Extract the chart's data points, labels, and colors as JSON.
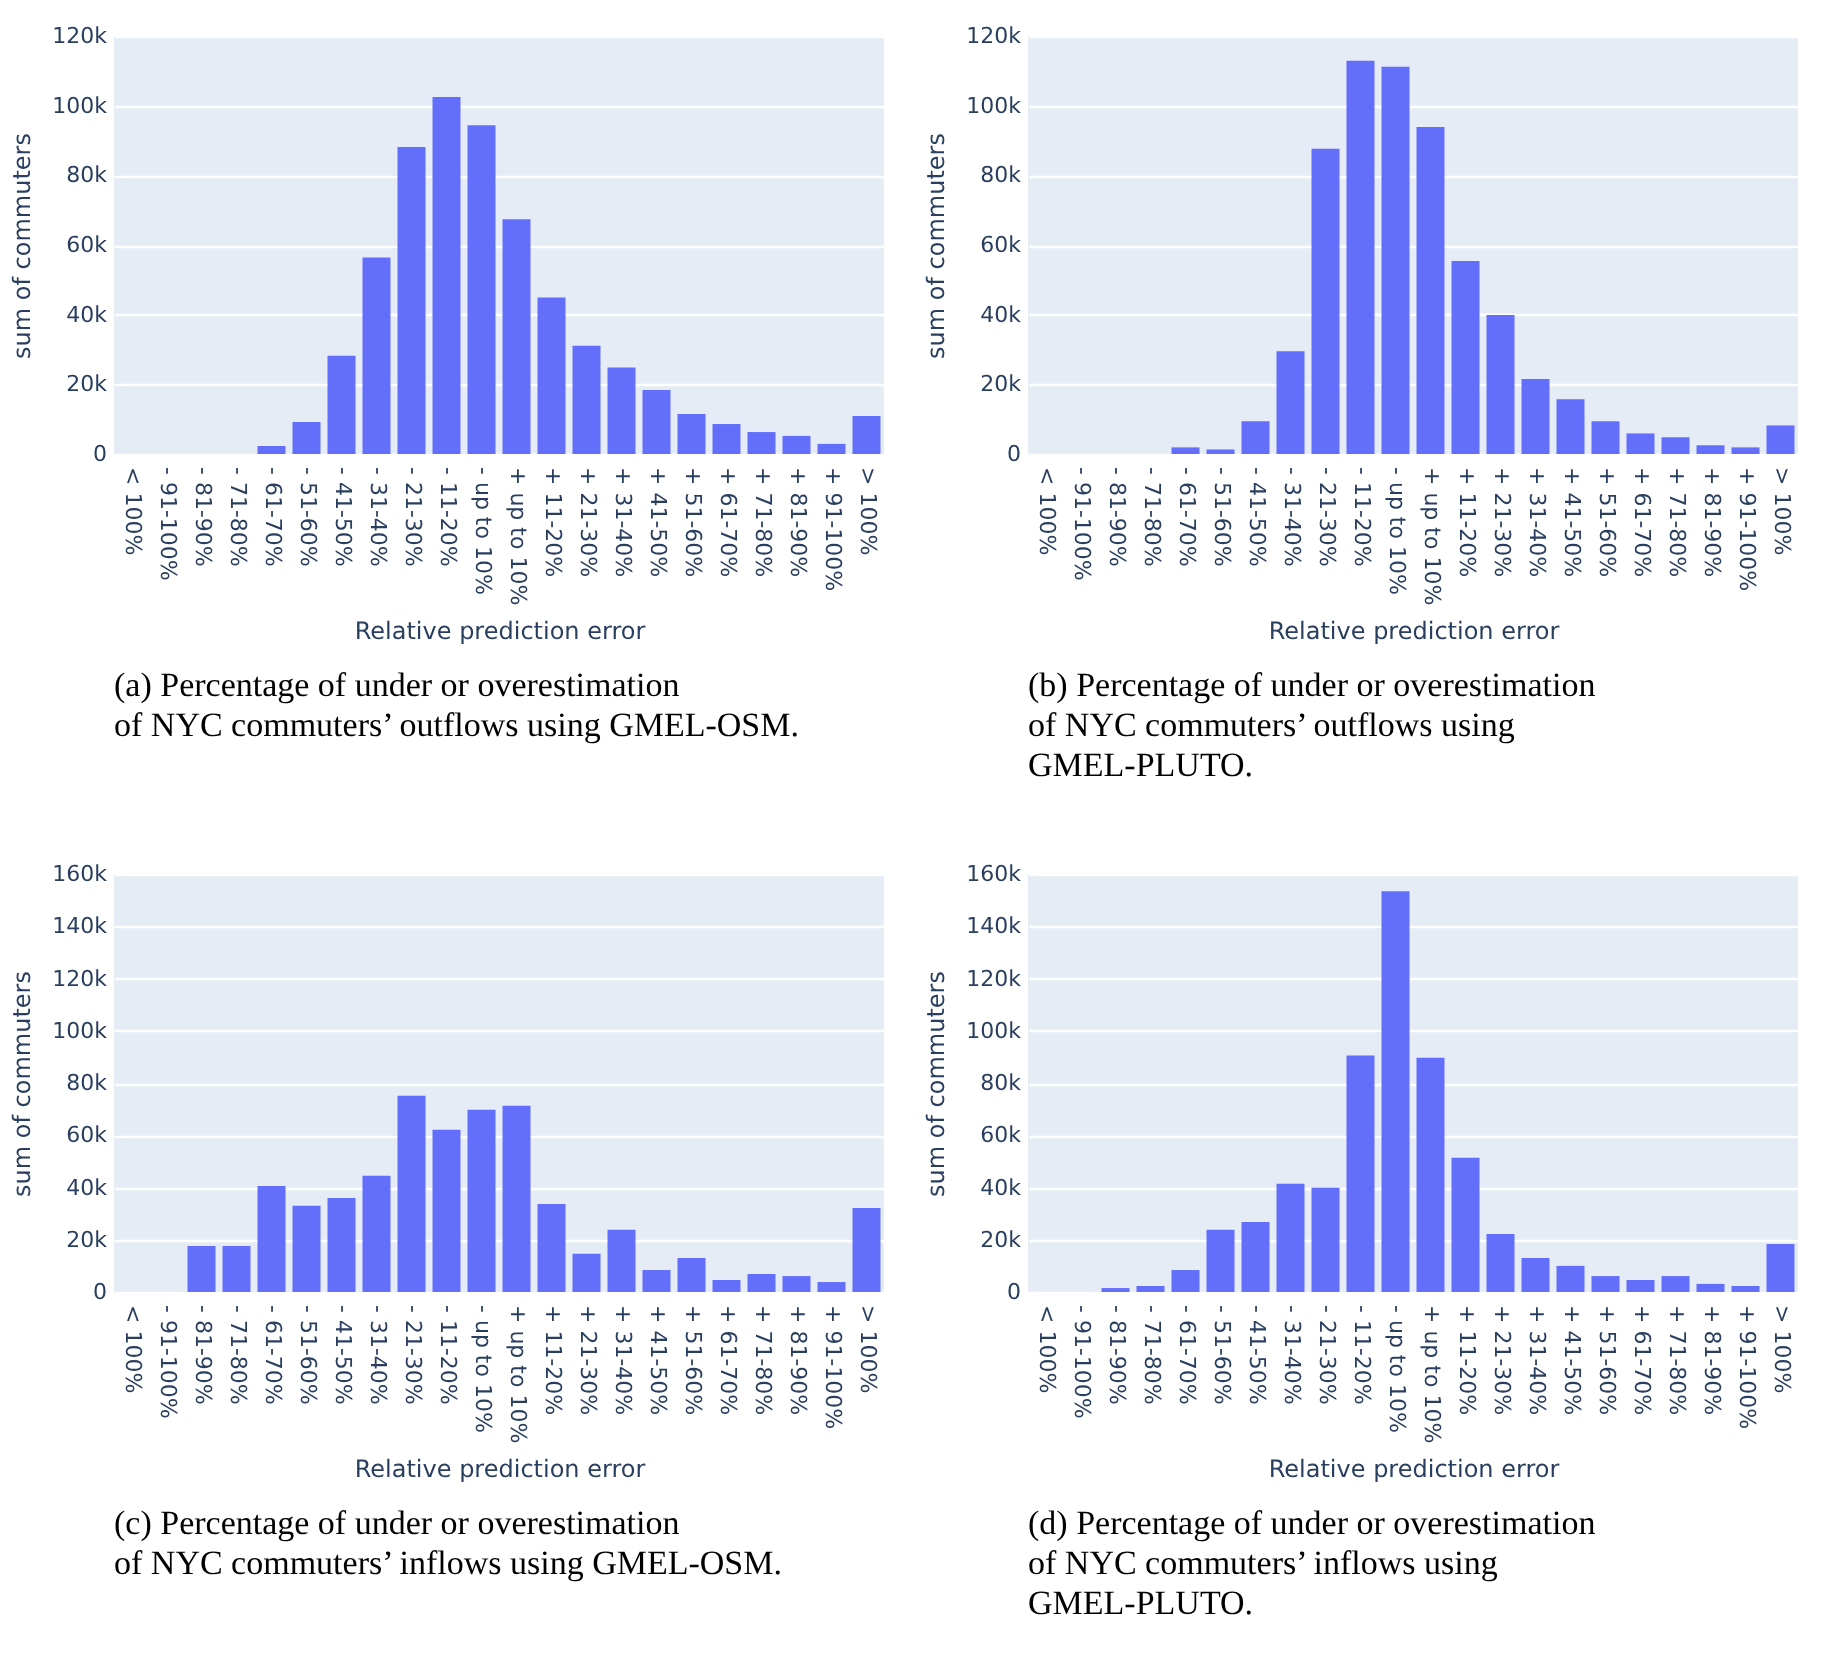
{
  "chart_data": [
    {
      "type": "bar",
      "xlabel": "Relative prediction error",
      "ylabel": "sum of commuters",
      "annotations": [
        "(a) Percentage of under or overestimation of NYC commuters’ outflows using GMEL-OSM."
      ],
      "color": "#636efa",
      "grid": "y",
      "ylim": [
        0,
        120000
      ],
      "yticks": [
        {
          "value": 0,
          "label": "0"
        },
        {
          "value": 20000,
          "label": "20k"
        },
        {
          "value": 40000,
          "label": "40k"
        },
        {
          "value": 60000,
          "label": "60k"
        },
        {
          "value": 80000,
          "label": "80k"
        },
        {
          "value": 100000,
          "label": "100k"
        },
        {
          "value": 120000,
          "label": "120k"
        }
      ],
      "categories": [
        "< 100%",
        "- 91-100%",
        "- 81-90%",
        "- 71-80%",
        "- 61-70%",
        "- 51-60%",
        "- 41-50%",
        "- 31-40%",
        "- 21-30%",
        "- 11-20%",
        "- up to 10%",
        "+ up to 10%",
        "+ 11-20%",
        "+ 21-30%",
        "+ 31-40%",
        "+ 41-50%",
        "+ 51-60%",
        "+ 61-70%",
        "+ 71-80%",
        "+ 81-90%",
        "+ 91-100%",
        "> 100%"
      ],
      "values": [
        0,
        0,
        0,
        0,
        2300,
        9200,
        28200,
        56400,
        88100,
        102500,
        94400,
        67400,
        44900,
        31100,
        24800,
        18400,
        11500,
        8600,
        6300,
        5200,
        2900,
        10900
      ]
    },
    {
      "type": "bar",
      "xlabel": "Relative prediction error",
      "ylabel": "sum of commuters",
      "annotations": [
        "(b) Percentage of under or overestimation of NYC commuters’ outflows using GMEL-PLUTO."
      ],
      "color": "#636efa",
      "grid": "y",
      "ylim": [
        0,
        120000
      ],
      "yticks": [
        {
          "value": 0,
          "label": "0"
        },
        {
          "value": 20000,
          "label": "20k"
        },
        {
          "value": 40000,
          "label": "40k"
        },
        {
          "value": 60000,
          "label": "60k"
        },
        {
          "value": 80000,
          "label": "80k"
        },
        {
          "value": 100000,
          "label": "100k"
        },
        {
          "value": 120000,
          "label": "120k"
        }
      ],
      "categories": [
        "< 100%",
        "- 91-100%",
        "- 81-90%",
        "- 71-80%",
        "- 61-70%",
        "- 51-60%",
        "- 41-50%",
        "- 31-40%",
        "- 21-30%",
        "- 11-20%",
        "- up to 10%",
        "+ up to 10%",
        "+ 11-20%",
        "+ 21-30%",
        "+ 31-40%",
        "+ 41-50%",
        "+ 51-60%",
        "+ 61-70%",
        "+ 71-80%",
        "+ 81-90%",
        "+ 91-100%",
        "> 100%"
      ],
      "values": [
        0,
        0,
        0,
        0,
        1900,
        1300,
        9400,
        29500,
        87600,
        112900,
        111200,
        93900,
        55400,
        39900,
        21500,
        15700,
        9400,
        5900,
        4800,
        2500,
        1900,
        8200
      ]
    },
    {
      "type": "bar",
      "xlabel": "Relative prediction error",
      "ylabel": "sum of commuters",
      "annotations": [
        "(c) Percentage of under or overestimation of NYC commuters’ inflows using GMEL-OSM."
      ],
      "color": "#636efa",
      "grid": "y",
      "ylim": [
        0,
        160000
      ],
      "yticks": [
        {
          "value": 0,
          "label": "0"
        },
        {
          "value": 20000,
          "label": "20k"
        },
        {
          "value": 40000,
          "label": "40k"
        },
        {
          "value": 60000,
          "label": "60k"
        },
        {
          "value": 80000,
          "label": "80k"
        },
        {
          "value": 100000,
          "label": "100k"
        },
        {
          "value": 120000,
          "label": "120k"
        },
        {
          "value": 140000,
          "label": "140k"
        },
        {
          "value": 160000,
          "label": "160k"
        }
      ],
      "categories": [
        "< 100%",
        "- 91-100%",
        "- 81-90%",
        "- 71-80%",
        "- 61-70%",
        "- 51-60%",
        "- 41-50%",
        "- 31-40%",
        "- 21-30%",
        "- 11-20%",
        "- up to 10%",
        "+ up to 10%",
        "+ 11-20%",
        "+ 21-30%",
        "+ 31-40%",
        "+ 41-50%",
        "+ 51-60%",
        "+ 61-70%",
        "+ 71-80%",
        "+ 81-90%",
        "+ 91-100%",
        "> 100%"
      ],
      "values": [
        0,
        0,
        17600,
        17600,
        40600,
        33000,
        36000,
        44500,
        75100,
        62100,
        69800,
        71300,
        33700,
        14600,
        23800,
        8400,
        13000,
        4600,
        6900,
        6100,
        3800,
        32200
      ]
    },
    {
      "type": "bar",
      "xlabel": "Relative prediction error",
      "ylabel": "sum of commuters",
      "annotations": [
        "(d) Percentage of under or overestimation of NYC commuters’ inflows using GMEL-PLUTO."
      ],
      "color": "#636efa",
      "grid": "y",
      "ylim": [
        0,
        160000
      ],
      "yticks": [
        {
          "value": 0,
          "label": "0"
        },
        {
          "value": 20000,
          "label": "20k"
        },
        {
          "value": 40000,
          "label": "40k"
        },
        {
          "value": 60000,
          "label": "60k"
        },
        {
          "value": 80000,
          "label": "80k"
        },
        {
          "value": 100000,
          "label": "100k"
        },
        {
          "value": 120000,
          "label": "120k"
        },
        {
          "value": 140000,
          "label": "140k"
        },
        {
          "value": 160000,
          "label": "160k"
        }
      ],
      "categories": [
        "< 100%",
        "- 91-100%",
        "- 81-90%",
        "- 71-80%",
        "- 61-70%",
        "- 51-60%",
        "- 41-50%",
        "- 31-40%",
        "- 21-30%",
        "- 11-20%",
        "- up to 10%",
        "+ up to 10%",
        "+ 11-20%",
        "+ 21-30%",
        "+ 31-40%",
        "+ 41-50%",
        "+ 51-60%",
        "+ 61-70%",
        "+ 71-80%",
        "+ 81-90%",
        "+ 91-100%",
        "> 100%"
      ],
      "values": [
        0,
        0,
        1500,
        2300,
        8400,
        23800,
        26800,
        41400,
        39900,
        90500,
        153400,
        89700,
        51400,
        22200,
        13000,
        10000,
        6100,
        4600,
        6100,
        3100,
        2300,
        18400
      ]
    }
  ]
}
